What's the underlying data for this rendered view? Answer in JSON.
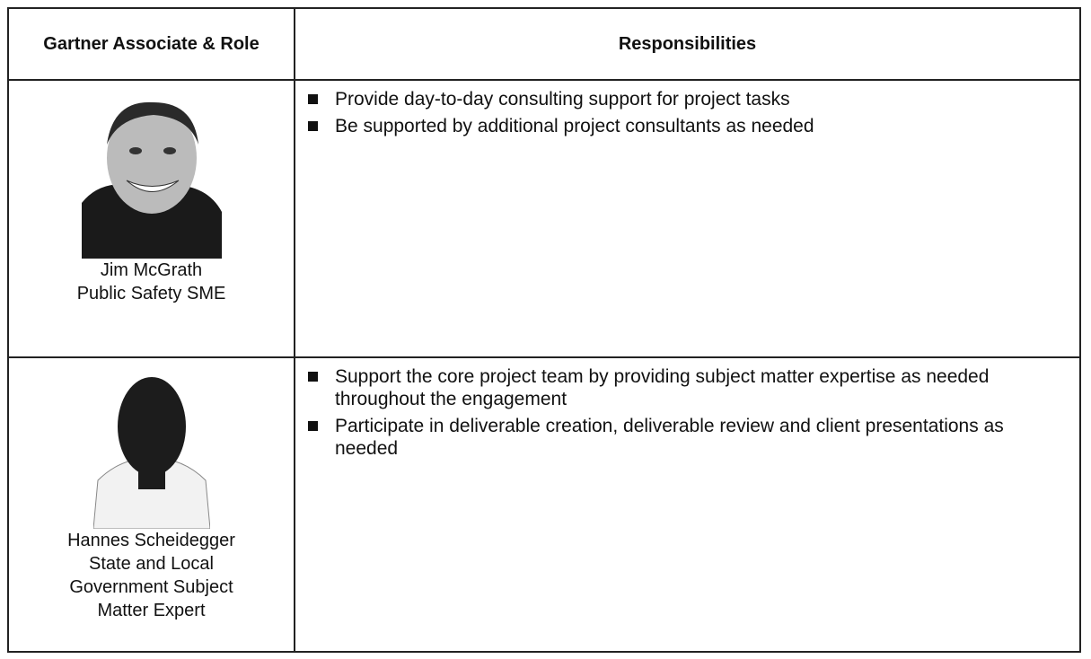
{
  "table": {
    "header": [
      "Gartner Associate & Role",
      "Responsibilities"
    ],
    "rows": [
      {
        "name": "Jim McGrath",
        "role": "Public Safety SME",
        "responsibilities": [
          "Provide day-to-day consulting support for project tasks",
          "Be supported by additional project consultants as needed"
        ]
      },
      {
        "name": "Hannes Scheidegger",
        "role": "State and Local Government Subject Matter Expert",
        "responsibilities": [
          "Support the core project team by providing subject matter expertise as needed throughout the engagement",
          "Participate in deliverable creation, deliverable review and client presentations as needed"
        ]
      }
    ]
  }
}
